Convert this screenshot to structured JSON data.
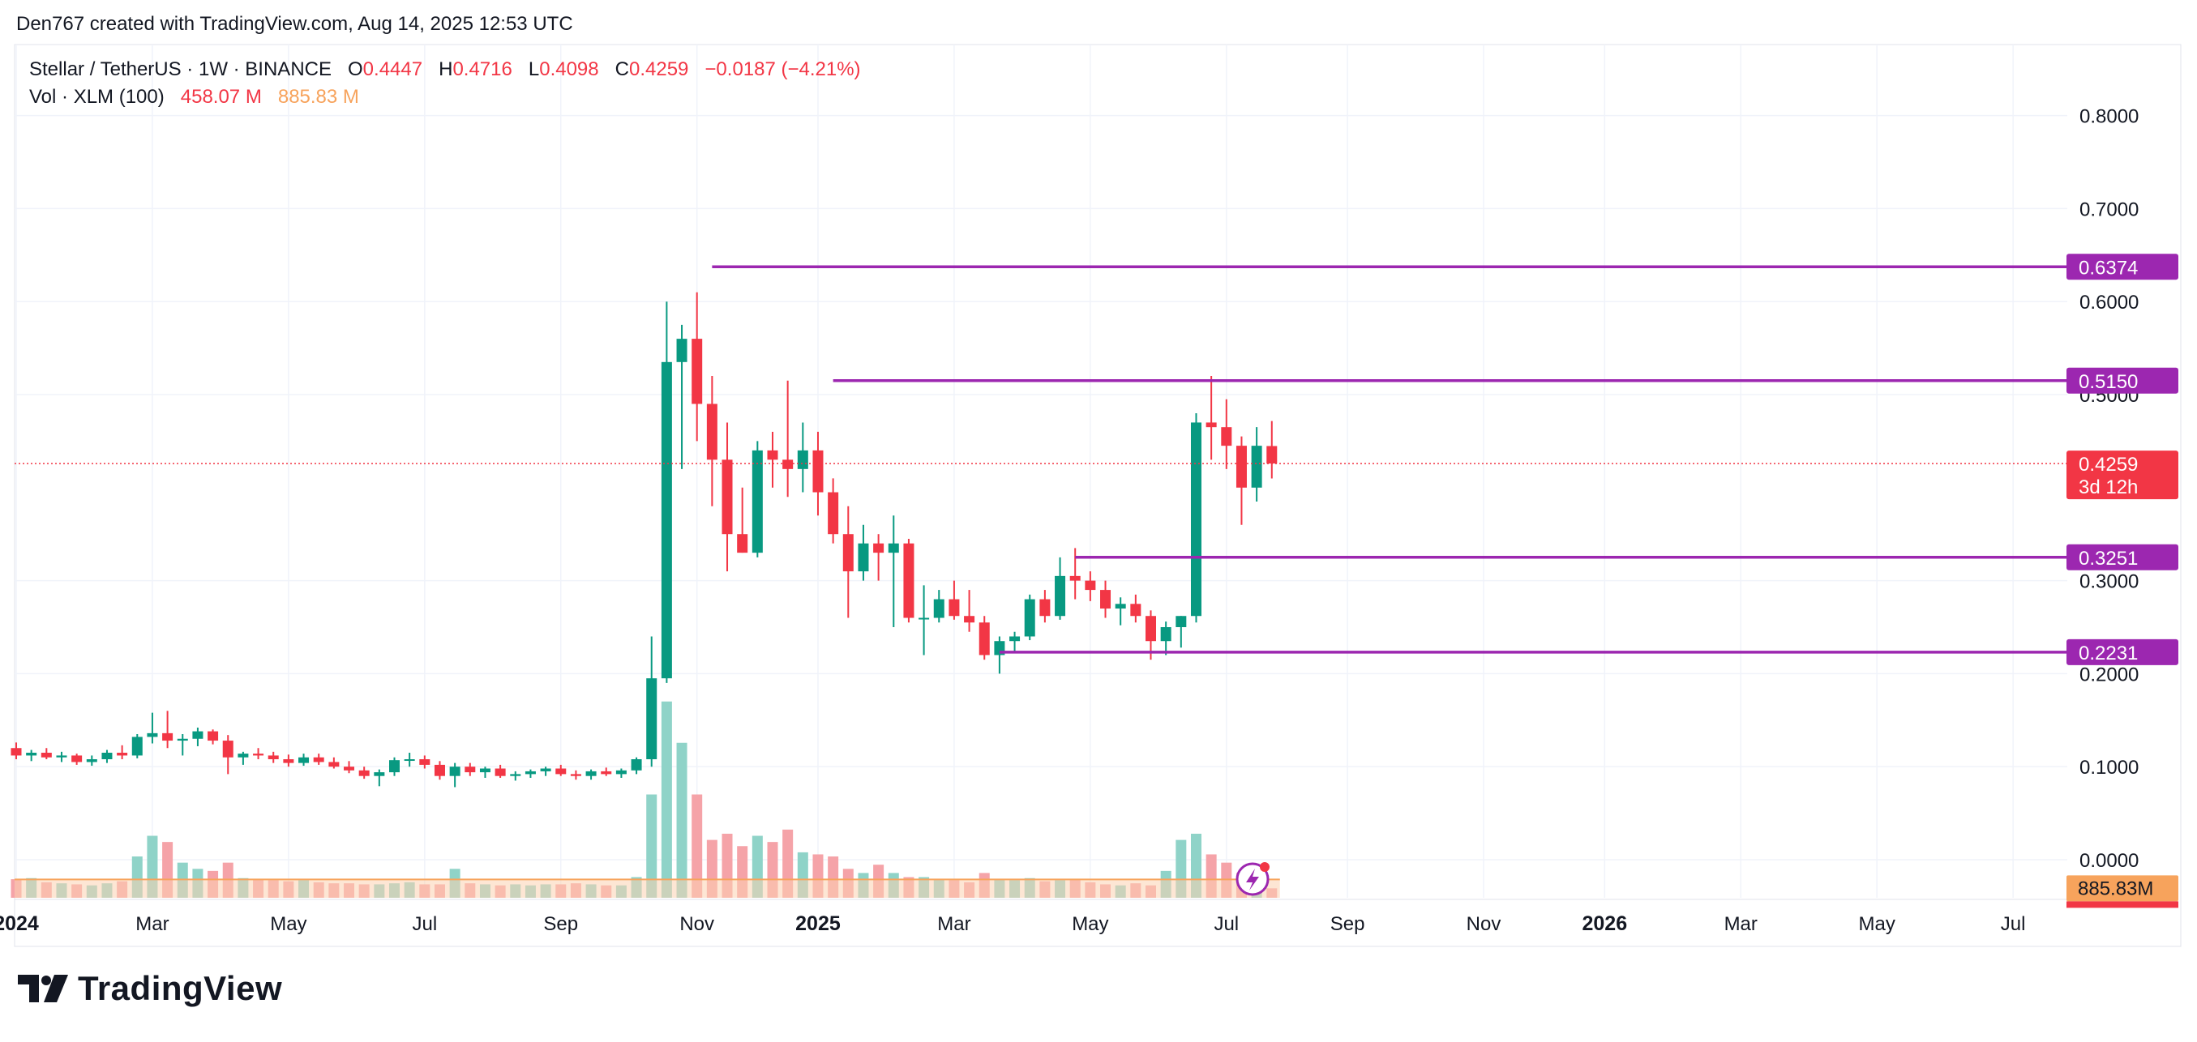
{
  "header": {
    "attribution": "Den767 created with TradingView.com, Aug 14, 2025 12:53 UTC"
  },
  "legend": {
    "symbol": "Stellar / TetherUS · 1W · BINANCE",
    "o_label": "O",
    "o_value": "0.4447",
    "h_label": "H",
    "h_value": "0.4716",
    "l_label": "L",
    "l_value": "0.4098",
    "c_label": "C",
    "c_value": "0.4259",
    "change": "−0.0187 (−4.21%)",
    "vol_label": "Vol · XLM (100)",
    "vol_value": "458.07 M",
    "vol_ma": "885.83 M"
  },
  "brand": {
    "name": "TradingView",
    "logo_icon": "tradingview-logo-icon"
  },
  "colors": {
    "up": "#089981",
    "down": "#F23645",
    "vol_up": "#8FD3C8",
    "vol_down": "#F5A3A8",
    "vol_ma_line": "#F7A35C",
    "vol_ma_fill": "#FBD2B0",
    "level": "#9C27B0",
    "grid": "#F0F3FA",
    "price_line": "#F23645"
  },
  "chart_data": {
    "type": "candlestick",
    "title": "Stellar / TetherUS · 1W · BINANCE",
    "y_axis": {
      "ticks": [
        0.0,
        0.1,
        0.2,
        0.3,
        0.5,
        0.6,
        0.7,
        0.8
      ],
      "tick_labels": [
        "0.0000",
        "0.1000",
        "0.2000",
        "0.3000",
        "0.5000",
        "0.6000",
        "0.7000",
        "0.8000"
      ],
      "range": [
        -0.03,
        0.84
      ]
    },
    "x_axis": {
      "ticks": [
        {
          "label": "2024",
          "bold": true,
          "week": 0
        },
        {
          "label": "Mar",
          "bold": false,
          "week": 9
        },
        {
          "label": "May",
          "bold": false,
          "week": 18
        },
        {
          "label": "Jul",
          "bold": false,
          "week": 27
        },
        {
          "label": "Sep",
          "bold": false,
          "week": 36
        },
        {
          "label": "Nov",
          "bold": false,
          "week": 45
        },
        {
          "label": "2025",
          "bold": true,
          "week": 53
        },
        {
          "label": "Mar",
          "bold": false,
          "week": 62
        },
        {
          "label": "May",
          "bold": false,
          "week": 71
        },
        {
          "label": "Jul",
          "bold": false,
          "week": 80
        },
        {
          "label": "Sep",
          "bold": false,
          "week": 88
        },
        {
          "label": "Nov",
          "bold": false,
          "week": 97
        },
        {
          "label": "2026",
          "bold": true,
          "week": 105
        },
        {
          "label": "Mar",
          "bold": false,
          "week": 114
        },
        {
          "label": "May",
          "bold": false,
          "week": 123
        },
        {
          "label": "Jul",
          "bold": false,
          "week": 132
        }
      ]
    },
    "horizontal_levels": [
      {
        "label": "0.6374",
        "value": 0.6374,
        "from_week": 46
      },
      {
        "label": "0.5150",
        "value": 0.515,
        "from_week": 54
      },
      {
        "label": "0.3251",
        "value": 0.3251,
        "from_week": 70
      },
      {
        "label": "0.2231",
        "value": 0.2231,
        "from_week": 65
      }
    ],
    "last_price": {
      "label": "0.4259",
      "value": 0.4259,
      "countdown": "3d 12h"
    },
    "volume_tag": "885.83M",
    "candles_ohlc": [
      [
        0.12,
        0.126,
        0.108,
        0.112
      ],
      [
        0.112,
        0.118,
        0.106,
        0.115
      ],
      [
        0.115,
        0.12,
        0.108,
        0.11
      ],
      [
        0.11,
        0.116,
        0.105,
        0.112
      ],
      [
        0.112,
        0.114,
        0.102,
        0.105
      ],
      [
        0.105,
        0.112,
        0.101,
        0.108
      ],
      [
        0.108,
        0.118,
        0.104,
        0.115
      ],
      [
        0.115,
        0.123,
        0.108,
        0.112
      ],
      [
        0.112,
        0.135,
        0.109,
        0.132
      ],
      [
        0.132,
        0.158,
        0.125,
        0.136
      ],
      [
        0.136,
        0.16,
        0.12,
        0.128
      ],
      [
        0.128,
        0.135,
        0.112,
        0.13
      ],
      [
        0.13,
        0.142,
        0.122,
        0.138
      ],
      [
        0.138,
        0.14,
        0.124,
        0.128
      ],
      [
        0.128,
        0.134,
        0.092,
        0.11
      ],
      [
        0.11,
        0.116,
        0.102,
        0.114
      ],
      [
        0.114,
        0.12,
        0.108,
        0.112
      ],
      [
        0.112,
        0.116,
        0.104,
        0.108
      ],
      [
        0.108,
        0.113,
        0.1,
        0.104
      ],
      [
        0.104,
        0.114,
        0.101,
        0.11
      ],
      [
        0.11,
        0.114,
        0.102,
        0.105
      ],
      [
        0.105,
        0.11,
        0.098,
        0.1
      ],
      [
        0.1,
        0.106,
        0.093,
        0.096
      ],
      [
        0.096,
        0.1,
        0.087,
        0.09
      ],
      [
        0.09,
        0.097,
        0.079,
        0.094
      ],
      [
        0.094,
        0.11,
        0.09,
        0.107
      ],
      [
        0.107,
        0.115,
        0.1,
        0.108
      ],
      [
        0.108,
        0.112,
        0.098,
        0.102
      ],
      [
        0.102,
        0.106,
        0.086,
        0.09
      ],
      [
        0.09,
        0.104,
        0.078,
        0.1
      ],
      [
        0.1,
        0.104,
        0.09,
        0.094
      ],
      [
        0.094,
        0.1,
        0.088,
        0.098
      ],
      [
        0.098,
        0.102,
        0.088,
        0.09
      ],
      [
        0.09,
        0.095,
        0.085,
        0.092
      ],
      [
        0.092,
        0.097,
        0.088,
        0.095
      ],
      [
        0.095,
        0.1,
        0.09,
        0.098
      ],
      [
        0.098,
        0.102,
        0.09,
        0.092
      ],
      [
        0.092,
        0.096,
        0.086,
        0.09
      ],
      [
        0.09,
        0.097,
        0.086,
        0.095
      ],
      [
        0.095,
        0.099,
        0.09,
        0.092
      ],
      [
        0.092,
        0.098,
        0.088,
        0.096
      ],
      [
        0.096,
        0.11,
        0.092,
        0.108
      ],
      [
        0.108,
        0.24,
        0.1,
        0.195
      ],
      [
        0.195,
        0.6,
        0.19,
        0.535
      ],
      [
        0.535,
        0.575,
        0.42,
        0.56
      ],
      [
        0.56,
        0.61,
        0.45,
        0.49
      ],
      [
        0.49,
        0.52,
        0.38,
        0.43
      ],
      [
        0.43,
        0.47,
        0.31,
        0.35
      ],
      [
        0.35,
        0.4,
        0.33,
        0.33
      ],
      [
        0.33,
        0.45,
        0.325,
        0.44
      ],
      [
        0.44,
        0.46,
        0.4,
        0.43
      ],
      [
        0.43,
        0.515,
        0.39,
        0.42
      ],
      [
        0.42,
        0.47,
        0.395,
        0.44
      ],
      [
        0.44,
        0.46,
        0.37,
        0.395
      ],
      [
        0.395,
        0.41,
        0.34,
        0.35
      ],
      [
        0.35,
        0.38,
        0.26,
        0.31
      ],
      [
        0.31,
        0.36,
        0.3,
        0.34
      ],
      [
        0.34,
        0.35,
        0.3,
        0.33
      ],
      [
        0.33,
        0.37,
        0.25,
        0.34
      ],
      [
        0.34,
        0.345,
        0.255,
        0.26
      ],
      [
        0.26,
        0.295,
        0.22,
        0.26
      ],
      [
        0.26,
        0.29,
        0.255,
        0.28
      ],
      [
        0.28,
        0.3,
        0.258,
        0.262
      ],
      [
        0.262,
        0.29,
        0.245,
        0.255
      ],
      [
        0.255,
        0.262,
        0.215,
        0.22
      ],
      [
        0.22,
        0.24,
        0.2,
        0.235
      ],
      [
        0.235,
        0.245,
        0.222,
        0.24
      ],
      [
        0.24,
        0.285,
        0.236,
        0.28
      ],
      [
        0.28,
        0.29,
        0.255,
        0.262
      ],
      [
        0.262,
        0.325,
        0.258,
        0.305
      ],
      [
        0.305,
        0.335,
        0.28,
        0.3
      ],
      [
        0.3,
        0.31,
        0.278,
        0.29
      ],
      [
        0.29,
        0.3,
        0.26,
        0.27
      ],
      [
        0.27,
        0.282,
        0.252,
        0.275
      ],
      [
        0.275,
        0.285,
        0.255,
        0.262
      ],
      [
        0.262,
        0.268,
        0.215,
        0.235
      ],
      [
        0.235,
        0.256,
        0.22,
        0.25
      ],
      [
        0.25,
        0.262,
        0.228,
        0.262
      ],
      [
        0.262,
        0.48,
        0.255,
        0.47
      ],
      [
        0.47,
        0.52,
        0.43,
        0.465
      ],
      [
        0.465,
        0.495,
        0.42,
        0.445
      ],
      [
        0.445,
        0.455,
        0.36,
        0.4
      ],
      [
        0.4,
        0.465,
        0.385,
        0.445
      ],
      [
        0.4447,
        0.4716,
        0.4098,
        0.4259
      ]
    ],
    "volume_millions": [
      900,
      950,
      750,
      700,
      650,
      600,
      700,
      800,
      2000,
      3000,
      2700,
      1700,
      1400,
      1300,
      1700,
      950,
      900,
      850,
      800,
      850,
      750,
      700,
      700,
      650,
      650,
      700,
      750,
      650,
      650,
      1400,
      700,
      650,
      600,
      650,
      600,
      650,
      650,
      700,
      650,
      600,
      600,
      1000,
      5000,
      9500,
      7500,
      5000,
      2800,
      3100,
      2500,
      3000,
      2700,
      3300,
      2200,
      2100,
      2000,
      1400,
      1200,
      1600,
      1200,
      1000,
      1000,
      900,
      850,
      750,
      1200,
      900,
      850,
      950,
      800,
      850,
      900,
      750,
      650,
      600,
      700,
      600,
      1300,
      2800,
      3100,
      2100,
      1700,
      1200,
      650,
      458.07
    ],
    "volume_ma_millions": 885.83
  }
}
